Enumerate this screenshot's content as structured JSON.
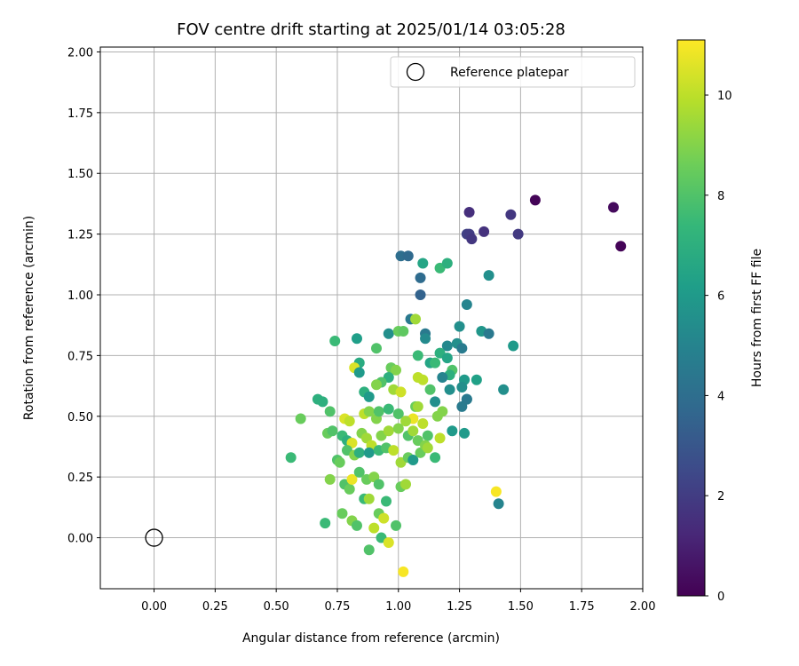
{
  "chart_data": {
    "type": "scatter",
    "title": "FOV centre drift starting at 2025/01/14 03:05:28",
    "xlabel": "Angular distance from reference (arcmin)",
    "ylabel": "Rotation from reference (arcmin)",
    "xlim": [
      -0.22,
      2.0
    ],
    "ylim": [
      -0.21,
      2.02
    ],
    "xticks": [
      "0.00",
      "0.25",
      "0.50",
      "0.75",
      "1.00",
      "1.25",
      "1.50",
      "1.75",
      "2.00"
    ],
    "yticks": [
      "0.00",
      "0.25",
      "0.50",
      "0.75",
      "1.00",
      "1.25",
      "1.50",
      "1.75",
      "2.00"
    ],
    "grid": true,
    "legend": {
      "label": "Reference platepar",
      "placement": "top-right"
    },
    "reference": {
      "x": 0.0,
      "y": 0.0
    },
    "colorbar": {
      "label": "Hours from first FF file",
      "range": [
        0,
        11.1
      ],
      "ticks": [
        "0",
        "2",
        "4",
        "6",
        "8",
        "10"
      ],
      "colormap": "viridis"
    },
    "colormap_stops": [
      "#440154",
      "#482878",
      "#3e4989",
      "#31688e",
      "#26828e",
      "#1f9e89",
      "#35b779",
      "#6ece58",
      "#b5de2b",
      "#fde725"
    ],
    "points": [
      [
        1.56,
        1.39,
        0.1
      ],
      [
        1.88,
        1.36,
        0.3
      ],
      [
        1.91,
        1.2,
        0.1
      ],
      [
        1.29,
        1.34,
        1.5
      ],
      [
        1.46,
        1.33,
        1.8
      ],
      [
        1.35,
        1.26,
        1.6
      ],
      [
        1.49,
        1.25,
        1.9
      ],
      [
        1.28,
        1.25,
        2.2
      ],
      [
        1.29,
        1.25,
        2.0
      ],
      [
        1.3,
        1.23,
        1.8
      ],
      [
        1.01,
        1.16,
        4.0
      ],
      [
        1.04,
        1.16,
        3.8
      ],
      [
        1.09,
        1.07,
        3.9
      ],
      [
        1.09,
        1.0,
        3.5
      ],
      [
        1.1,
        1.13,
        6.5
      ],
      [
        1.17,
        1.11,
        7.5
      ],
      [
        1.2,
        1.13,
        7.0
      ],
      [
        1.37,
        1.08,
        5.5
      ],
      [
        1.28,
        0.96,
        5.0
      ],
      [
        1.05,
        0.9,
        4.5
      ],
      [
        1.07,
        0.9,
        9.5
      ],
      [
        1.11,
        0.84,
        4.5
      ],
      [
        1.25,
        0.87,
        5.5
      ],
      [
        1.34,
        0.85,
        5.8
      ],
      [
        1.37,
        0.84,
        4.5
      ],
      [
        1.11,
        0.82,
        5.3
      ],
      [
        1.2,
        0.79,
        5.2
      ],
      [
        1.24,
        0.8,
        5.5
      ],
      [
        1.26,
        0.78,
        4.6
      ],
      [
        1.47,
        0.79,
        6.0
      ],
      [
        0.74,
        0.81,
        7.5
      ],
      [
        0.83,
        0.82,
        6.2
      ],
      [
        0.96,
        0.84,
        5.5
      ],
      [
        1.0,
        0.85,
        8.5
      ],
      [
        1.02,
        0.85,
        8.3
      ],
      [
        0.91,
        0.78,
        8.0
      ],
      [
        1.17,
        0.76,
        7.0
      ],
      [
        1.08,
        0.75,
        7.5
      ],
      [
        1.2,
        0.74,
        6.5
      ],
      [
        0.84,
        0.72,
        6.8
      ],
      [
        1.13,
        0.72,
        6.5
      ],
      [
        1.15,
        0.72,
        7.5
      ],
      [
        0.82,
        0.7,
        10.5
      ],
      [
        0.97,
        0.7,
        8.5
      ],
      [
        0.99,
        0.69,
        9.0
      ],
      [
        1.22,
        0.69,
        8.0
      ],
      [
        1.21,
        0.67,
        7.0
      ],
      [
        1.18,
        0.66,
        5.0
      ],
      [
        0.84,
        0.68,
        6.0
      ],
      [
        0.96,
        0.66,
        7.0
      ],
      [
        1.08,
        0.66,
        10.0
      ],
      [
        1.1,
        0.65,
        10.0
      ],
      [
        1.27,
        0.65,
        6.0
      ],
      [
        1.32,
        0.65,
        6.3
      ],
      [
        0.93,
        0.64,
        8.0
      ],
      [
        0.91,
        0.63,
        9.0
      ],
      [
        0.98,
        0.61,
        9.5
      ],
      [
        1.13,
        0.61,
        8.0
      ],
      [
        1.21,
        0.61,
        5.5
      ],
      [
        1.26,
        0.62,
        5.5
      ],
      [
        1.43,
        0.61,
        5.5
      ],
      [
        0.86,
        0.6,
        7.0
      ],
      [
        0.88,
        0.58,
        6.0
      ],
      [
        1.01,
        0.6,
        10.3
      ],
      [
        0.67,
        0.57,
        7.0
      ],
      [
        0.69,
        0.56,
        7.0
      ],
      [
        1.15,
        0.56,
        5.5
      ],
      [
        1.26,
        0.54,
        4.6
      ],
      [
        1.28,
        0.57,
        5.8
      ],
      [
        0.6,
        0.49,
        8.5
      ],
      [
        0.72,
        0.52,
        8.0
      ],
      [
        0.78,
        0.49,
        10.5
      ],
      [
        0.8,
        0.48,
        10.0
      ],
      [
        0.86,
        0.51,
        10.0
      ],
      [
        0.88,
        0.52,
        9.0
      ],
      [
        0.91,
        0.49,
        9.0
      ],
      [
        0.92,
        0.52,
        8.0
      ],
      [
        0.96,
        0.53,
        7.5
      ],
      [
        1.0,
        0.51,
        8.0
      ],
      [
        1.07,
        0.54,
        8.5
      ],
      [
        1.08,
        0.54,
        9.5
      ],
      [
        1.06,
        0.49,
        10.8
      ],
      [
        1.03,
        0.48,
        9.5
      ],
      [
        1.1,
        0.47,
        10.0
      ],
      [
        1.16,
        0.5,
        9.0
      ],
      [
        1.18,
        0.52,
        9.0
      ],
      [
        1.28,
        0.57,
        4.5
      ],
      [
        0.71,
        0.43,
        8.5
      ],
      [
        0.73,
        0.44,
        8.0
      ],
      [
        0.77,
        0.42,
        7.5
      ],
      [
        0.79,
        0.4,
        7.0
      ],
      [
        0.81,
        0.39,
        10.5
      ],
      [
        0.85,
        0.43,
        9.0
      ],
      [
        0.87,
        0.41,
        9.5
      ],
      [
        0.89,
        0.38,
        10.0
      ],
      [
        0.93,
        0.42,
        9.0
      ],
      [
        0.96,
        0.44,
        9.5
      ],
      [
        1.0,
        0.45,
        9.0
      ],
      [
        1.04,
        0.42,
        8.0
      ],
      [
        1.06,
        0.44,
        9.5
      ],
      [
        1.08,
        0.4,
        8.5
      ],
      [
        1.12,
        0.42,
        8.0
      ],
      [
        1.17,
        0.41,
        10.0
      ],
      [
        1.22,
        0.44,
        6.0
      ],
      [
        1.27,
        0.43,
        6.0
      ],
      [
        0.56,
        0.33,
        7.5
      ],
      [
        0.75,
        0.32,
        8.0
      ],
      [
        0.76,
        0.31,
        8.5
      ],
      [
        0.79,
        0.36,
        8.0
      ],
      [
        0.82,
        0.34,
        9.0
      ],
      [
        0.84,
        0.35,
        7.0
      ],
      [
        0.88,
        0.35,
        6.0
      ],
      [
        0.92,
        0.36,
        7.5
      ],
      [
        0.95,
        0.37,
        8.0
      ],
      [
        0.98,
        0.36,
        10.0
      ],
      [
        1.01,
        0.31,
        9.5
      ],
      [
        1.04,
        0.33,
        8.5
      ],
      [
        1.06,
        0.32,
        6.0
      ],
      [
        1.09,
        0.35,
        8.5
      ],
      [
        1.11,
        0.38,
        9.0
      ],
      [
        1.12,
        0.37,
        9.5
      ],
      [
        1.15,
        0.33,
        7.5
      ],
      [
        0.72,
        0.24,
        9.0
      ],
      [
        0.78,
        0.22,
        8.0
      ],
      [
        0.8,
        0.2,
        8.5
      ],
      [
        0.81,
        0.24,
        10.8
      ],
      [
        0.84,
        0.27,
        8.0
      ],
      [
        0.87,
        0.24,
        8.5
      ],
      [
        0.9,
        0.25,
        9.0
      ],
      [
        0.92,
        0.22,
        8.0
      ],
      [
        1.01,
        0.21,
        8.5
      ],
      [
        1.03,
        0.22,
        9.5
      ],
      [
        1.4,
        0.19,
        11.0
      ],
      [
        1.41,
        0.14,
        5.0
      ],
      [
        0.86,
        0.16,
        7.5
      ],
      [
        0.88,
        0.16,
        9.5
      ],
      [
        0.95,
        0.15,
        7.5
      ],
      [
        0.77,
        0.1,
        8.5
      ],
      [
        0.81,
        0.07,
        9.0
      ],
      [
        0.7,
        0.06,
        7.5
      ],
      [
        0.83,
        0.05,
        8.0
      ],
      [
        0.92,
        0.1,
        8.5
      ],
      [
        0.94,
        0.08,
        10.3
      ],
      [
        0.99,
        0.05,
        8.0
      ],
      [
        0.9,
        0.04,
        10.0
      ],
      [
        0.93,
        0.0,
        7.5
      ],
      [
        0.96,
        -0.02,
        10.5
      ],
      [
        0.88,
        -0.05,
        8.0
      ],
      [
        1.02,
        -0.14,
        11.0
      ]
    ]
  }
}
